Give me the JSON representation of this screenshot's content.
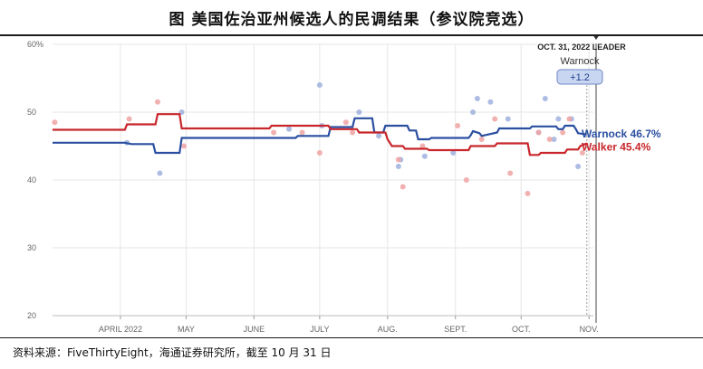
{
  "title": "图  美国佐治亚州候选人的民调结果（参议院竞选）",
  "footer": "资料来源：FiveThirtyEight，海通证券研究所，截至 10 月 31 日",
  "colors": {
    "warnock": "#2b4fa0",
    "walker": "#c8262b",
    "warnock_dot": "#9fb0dd",
    "walker_dot": "#f0a3a3",
    "grid": "#e6e6e6"
  },
  "chart_data": {
    "type": "line",
    "x_domain": [
      "2022-03-01",
      "2022-11-03"
    ],
    "ylim": [
      20,
      60
    ],
    "y_ticks": [
      {
        "value": 60,
        "label": "60%"
      },
      {
        "value": 50,
        "label": "50"
      },
      {
        "value": 40,
        "label": "40"
      },
      {
        "value": 30,
        "label": "30"
      },
      {
        "value": 20,
        "label": "20"
      }
    ],
    "x_ticks": [
      {
        "date": "2022-04-01",
        "label": "APRIL 2022"
      },
      {
        "date": "2022-05-01",
        "label": "MAY"
      },
      {
        "date": "2022-06-01",
        "label": "JUNE"
      },
      {
        "date": "2022-07-01",
        "label": "JULY"
      },
      {
        "date": "2022-08-01",
        "label": "AUG."
      },
      {
        "date": "2022-09-01",
        "label": "SEPT."
      },
      {
        "date": "2022-10-01",
        "label": "OCT."
      },
      {
        "date": "2022-11-01",
        "label": "NOV."
      }
    ],
    "grid": true,
    "leader_date": "2022-10-31",
    "leader_label": "OCT. 31, 2022 LEADER",
    "leader_name": "Warnock",
    "leader_margin": "+1.2",
    "series": [
      {
        "name": "Warnock",
        "end_label": "Warnock 46.7%",
        "points": [
          [
            "2022-03-01",
            45.5
          ],
          [
            "2022-04-03",
            45.5
          ],
          [
            "2022-04-06",
            45.3
          ],
          [
            "2022-04-16",
            45.3
          ],
          [
            "2022-04-17",
            44.0
          ],
          [
            "2022-04-28",
            44.0
          ],
          [
            "2022-04-29",
            46.2
          ],
          [
            "2022-06-20",
            46.2
          ],
          [
            "2022-06-21",
            46.5
          ],
          [
            "2022-07-05",
            46.5
          ],
          [
            "2022-07-06",
            47.8
          ],
          [
            "2022-07-16",
            47.8
          ],
          [
            "2022-07-17",
            49.1
          ],
          [
            "2022-07-25",
            49.1
          ],
          [
            "2022-07-26",
            47.0
          ],
          [
            "2022-07-30",
            47.0
          ],
          [
            "2022-07-31",
            48.0
          ],
          [
            "2022-08-10",
            48.0
          ],
          [
            "2022-08-11",
            47.3
          ],
          [
            "2022-08-14",
            47.3
          ],
          [
            "2022-08-15",
            46.0
          ],
          [
            "2022-08-20",
            46.0
          ],
          [
            "2022-08-21",
            46.2
          ],
          [
            "2022-09-07",
            46.2
          ],
          [
            "2022-09-08",
            46.6
          ],
          [
            "2022-09-09",
            47.2
          ],
          [
            "2022-09-12",
            46.9
          ],
          [
            "2022-09-13",
            46.5
          ],
          [
            "2022-09-20",
            47.0
          ],
          [
            "2022-09-21",
            47.6
          ],
          [
            "2022-10-05",
            47.6
          ],
          [
            "2022-10-06",
            47.9
          ],
          [
            "2022-10-17",
            47.9
          ],
          [
            "2022-10-18",
            47.5
          ],
          [
            "2022-10-20",
            47.5
          ],
          [
            "2022-10-21",
            48.0
          ],
          [
            "2022-10-25",
            48.0
          ],
          [
            "2022-10-26",
            47.5
          ],
          [
            "2022-10-27",
            46.9
          ],
          [
            "2022-10-31",
            46.7
          ]
        ]
      },
      {
        "name": "Walker",
        "end_label": "Walker 45.4%",
        "points": [
          [
            "2022-03-01",
            47.4
          ],
          [
            "2022-04-03",
            47.4
          ],
          [
            "2022-04-04",
            48.2
          ],
          [
            "2022-04-17",
            48.2
          ],
          [
            "2022-04-18",
            49.7
          ],
          [
            "2022-04-28",
            49.7
          ],
          [
            "2022-04-29",
            47.6
          ],
          [
            "2022-06-08",
            47.6
          ],
          [
            "2022-06-09",
            48.0
          ],
          [
            "2022-07-05",
            48.0
          ],
          [
            "2022-07-06",
            47.5
          ],
          [
            "2022-07-18",
            47.5
          ],
          [
            "2022-07-19",
            47.0
          ],
          [
            "2022-07-31",
            47.0
          ],
          [
            "2022-08-01",
            46.0
          ],
          [
            "2022-08-03",
            45.0
          ],
          [
            "2022-08-08",
            45.0
          ],
          [
            "2022-08-09",
            44.6
          ],
          [
            "2022-08-19",
            44.6
          ],
          [
            "2022-08-20",
            44.4
          ],
          [
            "2022-09-07",
            44.4
          ],
          [
            "2022-09-08",
            45.0
          ],
          [
            "2022-09-19",
            45.0
          ],
          [
            "2022-09-20",
            45.4
          ],
          [
            "2022-10-04",
            45.4
          ],
          [
            "2022-10-05",
            43.7
          ],
          [
            "2022-10-09",
            43.7
          ],
          [
            "2022-10-10",
            44.0
          ],
          [
            "2022-10-21",
            44.0
          ],
          [
            "2022-10-22",
            44.5
          ],
          [
            "2022-10-27",
            44.5
          ],
          [
            "2022-10-28",
            45.0
          ],
          [
            "2022-10-31",
            45.4
          ]
        ]
      }
    ],
    "polls": [
      {
        "series": "Warnock",
        "x": "2022-04-04",
        "y": 45.5
      },
      {
        "series": "Warnock",
        "x": "2022-04-19",
        "y": 41.0
      },
      {
        "series": "Warnock",
        "x": "2022-04-29",
        "y": 50.0
      },
      {
        "series": "Warnock",
        "x": "2022-06-17",
        "y": 47.5
      },
      {
        "series": "Warnock",
        "x": "2022-07-01",
        "y": 54.0
      },
      {
        "series": "Warnock",
        "x": "2022-07-02",
        "y": 48.0
      },
      {
        "series": "Warnock",
        "x": "2022-07-19",
        "y": 50.0
      },
      {
        "series": "Warnock",
        "x": "2022-07-28",
        "y": 46.5
      },
      {
        "series": "Warnock",
        "x": "2022-08-06",
        "y": 42.0
      },
      {
        "series": "Warnock",
        "x": "2022-08-07",
        "y": 43.0
      },
      {
        "series": "Warnock",
        "x": "2022-08-18",
        "y": 43.5
      },
      {
        "series": "Warnock",
        "x": "2022-08-31",
        "y": 44.0
      },
      {
        "series": "Warnock",
        "x": "2022-09-09",
        "y": 50.0
      },
      {
        "series": "Warnock",
        "x": "2022-09-11",
        "y": 52.0
      },
      {
        "series": "Warnock",
        "x": "2022-09-17",
        "y": 51.5
      },
      {
        "series": "Warnock",
        "x": "2022-09-25",
        "y": 49.0
      },
      {
        "series": "Warnock",
        "x": "2022-10-09",
        "y": 47.0
      },
      {
        "series": "Warnock",
        "x": "2022-10-12",
        "y": 52.0
      },
      {
        "series": "Warnock",
        "x": "2022-10-16",
        "y": 46.0
      },
      {
        "series": "Warnock",
        "x": "2022-10-18",
        "y": 49.0
      },
      {
        "series": "Warnock",
        "x": "2022-10-24",
        "y": 49.0
      },
      {
        "series": "Warnock",
        "x": "2022-10-27",
        "y": 42.0
      },
      {
        "series": "Walker",
        "x": "2022-03-02",
        "y": 48.5
      },
      {
        "series": "Walker",
        "x": "2022-04-05",
        "y": 49.0
      },
      {
        "series": "Walker",
        "x": "2022-04-18",
        "y": 51.5
      },
      {
        "series": "Walker",
        "x": "2022-04-30",
        "y": 45.0
      },
      {
        "series": "Walker",
        "x": "2022-06-10",
        "y": 47.0
      },
      {
        "series": "Walker",
        "x": "2022-06-23",
        "y": 47.0
      },
      {
        "series": "Walker",
        "x": "2022-07-01",
        "y": 44.0
      },
      {
        "series": "Walker",
        "x": "2022-07-13",
        "y": 48.5
      },
      {
        "series": "Walker",
        "x": "2022-07-16",
        "y": 47.0
      },
      {
        "series": "Walker",
        "x": "2022-08-06",
        "y": 43.0
      },
      {
        "series": "Walker",
        "x": "2022-08-08",
        "y": 39.0
      },
      {
        "series": "Walker",
        "x": "2022-08-17",
        "y": 45.0
      },
      {
        "series": "Walker",
        "x": "2022-09-02",
        "y": 48.0
      },
      {
        "series": "Walker",
        "x": "2022-09-06",
        "y": 40.0
      },
      {
        "series": "Walker",
        "x": "2022-09-13",
        "y": 46.0
      },
      {
        "series": "Walker",
        "x": "2022-09-19",
        "y": 49.0
      },
      {
        "series": "Walker",
        "x": "2022-09-26",
        "y": 41.0
      },
      {
        "series": "Walker",
        "x": "2022-10-04",
        "y": 38.0
      },
      {
        "series": "Walker",
        "x": "2022-10-09",
        "y": 47.0
      },
      {
        "series": "Walker",
        "x": "2022-10-14",
        "y": 46.0
      },
      {
        "series": "Walker",
        "x": "2022-10-20",
        "y": 47.0
      },
      {
        "series": "Walker",
        "x": "2022-10-23",
        "y": 49.0
      },
      {
        "series": "Walker",
        "x": "2022-10-29",
        "y": 44.0
      }
    ]
  }
}
